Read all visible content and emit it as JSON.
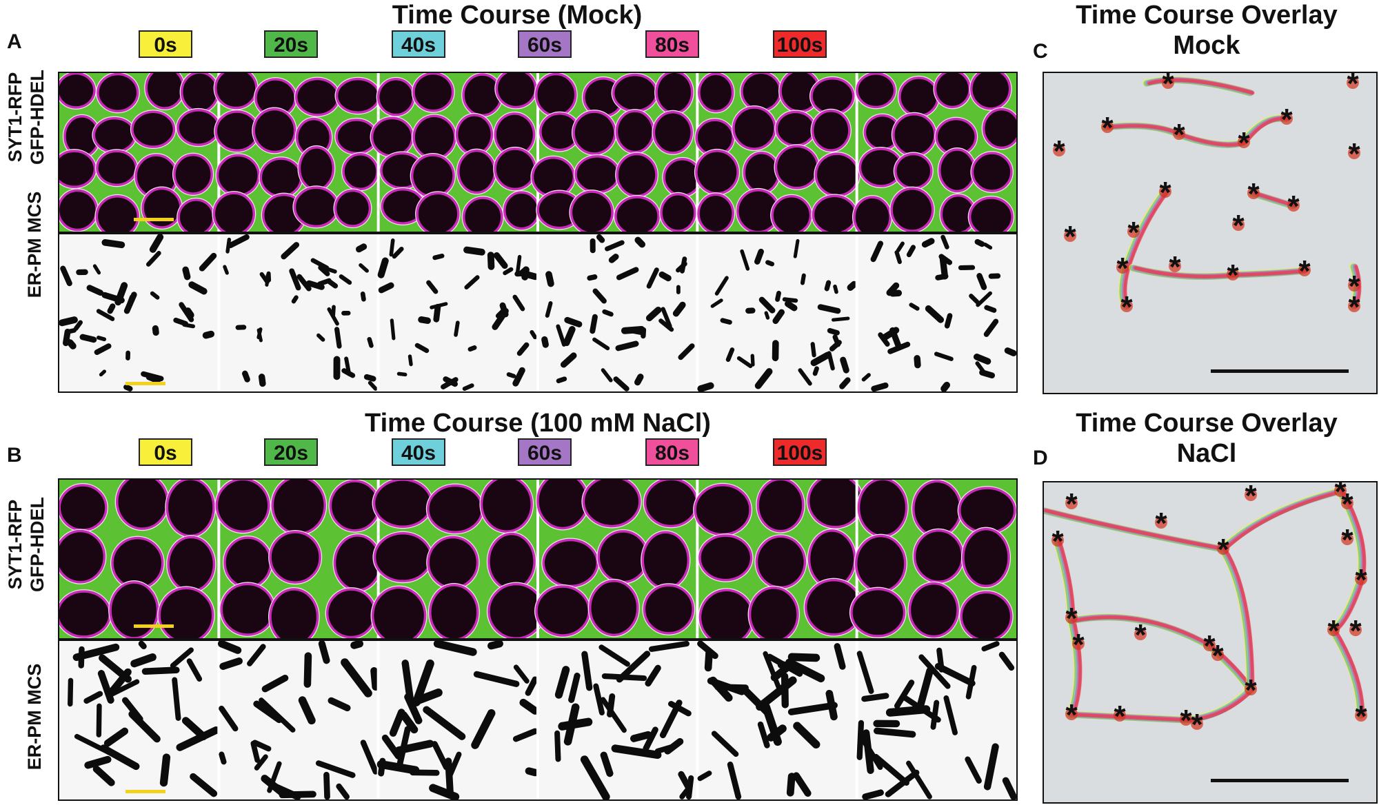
{
  "panels": {
    "A": {
      "letter": "A",
      "title": "Time Course (Mock)",
      "row1_label_line1": "SYT1-RFP",
      "row1_label_line2": "GFP-HDEL",
      "row2_label": "ER-PM MCS"
    },
    "B": {
      "letter": "B",
      "title": "Time Course (100 mM NaCl)",
      "row1_label_line1": "SYT1-RFP",
      "row1_label_line2": "GFP-HDEL",
      "row2_label": "ER-PM MCS"
    },
    "C": {
      "letter": "C",
      "title_line1": "Time Course Overlay",
      "title_line2": "Mock",
      "marker": "*"
    },
    "D": {
      "letter": "D",
      "title_line1": "Time Course Overlay",
      "title_line2": "NaCl",
      "marker": "*"
    }
  },
  "time_points": [
    {
      "label": "0s",
      "color": "#f7ef3a"
    },
    {
      "label": "20s",
      "color": "#4fb848"
    },
    {
      "label": "40s",
      "color": "#6fd0dc"
    },
    {
      "label": "60s",
      "color": "#a676c6"
    },
    {
      "label": "80s",
      "color": "#ef4f9b"
    },
    {
      "label": "100s",
      "color": "#ee2a2a"
    }
  ],
  "colors": {
    "scale_bar_yellow": "#f2d21a",
    "channel_green": "#5cc233",
    "channel_magenta": "#c82ab8",
    "cell_dark": "#1a0612",
    "overlay_background": "#d9dde0"
  }
}
